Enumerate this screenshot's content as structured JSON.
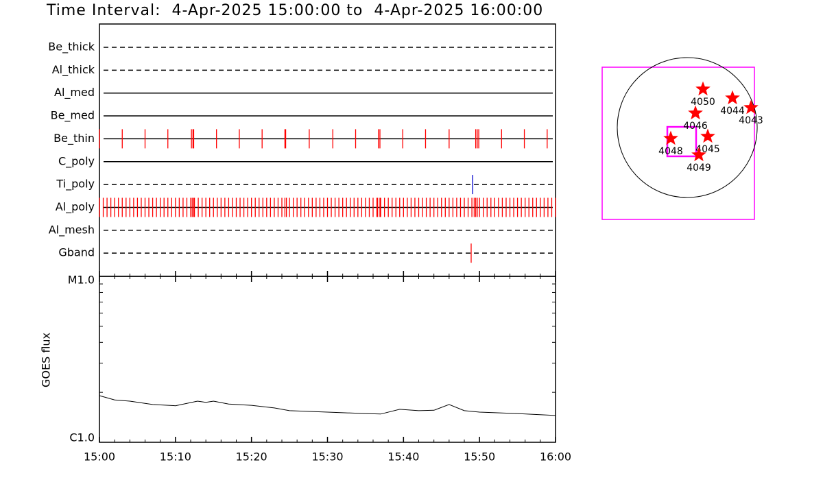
{
  "chart_data": [
    {
      "type": "timeline",
      "title": "Time Interval:  4-Apr-2025 15:00:00 to  4-Apr-2025 16:00:00",
      "xlim": [
        0,
        60
      ],
      "xticks": [
        0,
        10,
        20,
        30,
        40,
        50,
        60
      ],
      "xminorticks": [
        2,
        4,
        6,
        8,
        12,
        14,
        16,
        18,
        22,
        24,
        26,
        28,
        32,
        34,
        36,
        38,
        42,
        44,
        46,
        48,
        52,
        54,
        56,
        58
      ],
      "rows": [
        {
          "name": "Be_thick",
          "linestyle": "dashed",
          "color": "#ff0000",
          "events": []
        },
        {
          "name": "Al_thick",
          "linestyle": "dashed",
          "color": "#ff0000",
          "events": []
        },
        {
          "name": "Al_med",
          "linestyle": "solid",
          "color": "#ff0000",
          "events": []
        },
        {
          "name": "Be_med",
          "linestyle": "solid",
          "color": "#ff0000",
          "events": []
        },
        {
          "name": "Be_thin",
          "linestyle": "solid",
          "color": "#ff0000",
          "events": [
            0,
            3,
            6,
            9,
            12.1,
            12.3,
            12.4,
            15.4,
            18.4,
            21.4,
            24.4,
            24.5,
            27.6,
            30.7,
            33.7,
            36.7,
            36.9,
            39.9,
            42.9,
            46,
            49.5,
            49.7,
            49.9,
            52.9,
            55.9,
            58.9
          ]
        },
        {
          "name": "C_poly",
          "linestyle": "solid",
          "color": "#ff0000",
          "events": []
        },
        {
          "name": "Ti_poly",
          "linestyle": "dashed",
          "color": "#0000cc",
          "events": [
            49.1
          ]
        },
        {
          "name": "Al_poly",
          "linestyle": "solid",
          "color": "#ff0000",
          "events": [
            0,
            0.5,
            1,
            1.5,
            2,
            2.5,
            3,
            3.5,
            4,
            4.5,
            5,
            5.5,
            6,
            6.5,
            7,
            7.5,
            8,
            8.5,
            9,
            9.5,
            10,
            10.5,
            11,
            11.5,
            12,
            12.2,
            12.4,
            12.5,
            13,
            13.5,
            14,
            14.5,
            15,
            15.5,
            16,
            16.5,
            17,
            17.5,
            18,
            18.5,
            19,
            19.5,
            20,
            20.5,
            21,
            21.5,
            22,
            22.5,
            23,
            23.5,
            24,
            24.4,
            24.6,
            25,
            25.5,
            26,
            26.5,
            27,
            27.5,
            28,
            28.5,
            29,
            29.5,
            30,
            30.5,
            31,
            31.5,
            32,
            32.5,
            33,
            33.5,
            34,
            34.5,
            35,
            35.5,
            36,
            36.5,
            36.6,
            36.9,
            37,
            37.5,
            38,
            38.5,
            39,
            39.5,
            40,
            40.5,
            41,
            41.5,
            42,
            42.5,
            43,
            43.5,
            44,
            44.5,
            45,
            45.5,
            46,
            46.5,
            47,
            47.5,
            48,
            48.5,
            49,
            49.3,
            49.5,
            49.7,
            50,
            50.5,
            51,
            51.5,
            52,
            52.5,
            53,
            53.5,
            54,
            54.5,
            55,
            55.5,
            56,
            56.5,
            57,
            57.5,
            58,
            58.5,
            59,
            59.5,
            60
          ]
        },
        {
          "name": "Al_mesh",
          "linestyle": "dashed",
          "color": "#ff0000",
          "events": []
        },
        {
          "name": "Gband",
          "linestyle": "dashed",
          "color": "#ff0000",
          "events": [
            48.9
          ]
        }
      ]
    },
    {
      "type": "line",
      "ylabel": "GOES flux",
      "ylog": true,
      "xlim": [
        0,
        60
      ],
      "xticks": [
        {
          "value": 0,
          "label": "15:00"
        },
        {
          "value": 10,
          "label": "15:10"
        },
        {
          "value": 20,
          "label": "15:20"
        },
        {
          "value": 30,
          "label": "15:30"
        },
        {
          "value": 40,
          "label": "15:40"
        },
        {
          "value": 50,
          "label": "15:50"
        },
        {
          "value": 60,
          "label": "16:00"
        }
      ],
      "xminorticks": [
        2,
        4,
        6,
        8,
        12,
        14,
        16,
        18,
        22,
        24,
        26,
        28,
        32,
        34,
        36,
        38,
        42,
        44,
        46,
        48,
        52,
        54,
        56,
        58
      ],
      "ylim": [
        1e-06,
        1e-05
      ],
      "yticks": [
        {
          "value": 1e-06,
          "label": "C1.0"
        },
        {
          "value": 1e-05,
          "label": "M1.0"
        }
      ],
      "yminorticks": [
        2e-06,
        3e-06,
        4e-06,
        5e-06,
        6e-06,
        7e-06,
        8e-06,
        9e-06
      ],
      "color": "#000000",
      "x": [
        0,
        2,
        4,
        7,
        10,
        12.9,
        14,
        15,
        17,
        20,
        23,
        25,
        30,
        35,
        37,
        39.5,
        42,
        44,
        46,
        48,
        50,
        55,
        60
      ],
      "values": [
        1.91e-06,
        1.8e-06,
        1.77e-06,
        1.69e-06,
        1.66e-06,
        1.77e-06,
        1.74e-06,
        1.77e-06,
        1.7e-06,
        1.67e-06,
        1.61e-06,
        1.55e-06,
        1.52e-06,
        1.49e-06,
        1.48e-06,
        1.58e-06,
        1.55e-06,
        1.56e-06,
        1.69e-06,
        1.55e-06,
        1.52e-06,
        1.49e-06,
        1.45e-06
      ]
    },
    {
      "type": "map",
      "xlim": [
        -1167,
        922
      ],
      "ylim": [
        -1261,
        828
      ],
      "disk_radius": 960,
      "box_color": "#ff00ff",
      "fov": {
        "x": [
          -273,
          122
        ],
        "y": [
          -395,
          9
        ]
      },
      "color": "#ff0000",
      "labels": [
        "4050",
        "4044",
        "4043",
        "4046",
        "4045",
        "4048",
        "4049"
      ],
      "x": [
        216,
        621,
        875,
        113,
        282,
        -226,
        160
      ],
      "y": [
        527,
        405,
        273,
        198,
        -122,
        -151,
        -376
      ]
    }
  ]
}
